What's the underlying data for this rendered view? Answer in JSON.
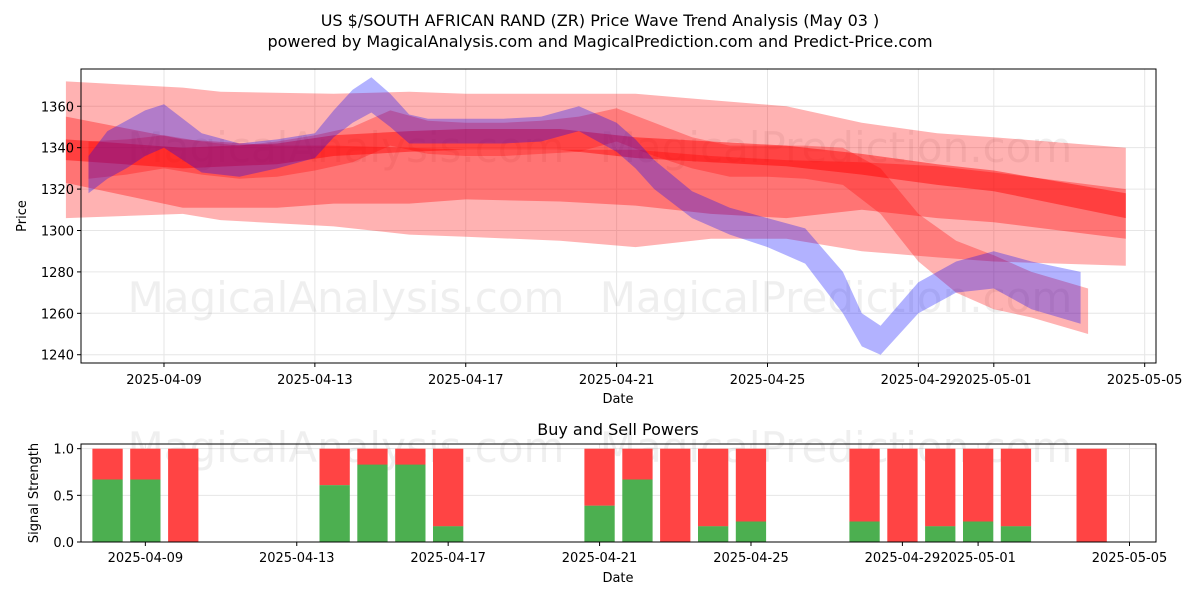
{
  "header": {
    "title_line1": "US $/SOUTH AFRICAN RAND (ZR) Price Wave Trend Analysis (May 03 )",
    "title_line2": "powered by MagicalAnalysis.com and MagicalPrediction.com and Predict-Price.com"
  },
  "watermarks": {
    "left": "MagicalAnalysis.com",
    "right": "MagicalPrediction.com"
  },
  "colors": {
    "red_band": "#ff0000",
    "blue_band": "#0000ff",
    "buy": "#4caf50",
    "sell": "#ff4444",
    "grid": "#e6e6e6"
  },
  "chart_data": [
    {
      "type": "area",
      "title": "",
      "xlabel": "Date",
      "ylabel": "Price",
      "ylim": [
        1236,
        1378
      ],
      "xlim_dates": [
        "2025-04-06.8",
        "2025-05-05.3"
      ],
      "x_ticks": [
        "2025-04-09",
        "2025-04-13",
        "2025-04-17",
        "2025-04-21",
        "2025-04-25",
        "2025-04-29",
        "2025-05-01",
        "2025-05-05"
      ],
      "y_ticks": [
        1240,
        1260,
        1280,
        1300,
        1320,
        1340,
        1360
      ],
      "grid": true,
      "series": [
        {
          "name": "red upper band",
          "color": "#ff0000",
          "opacity": 0.3,
          "x": [
            -0.6,
            2.5,
            3.5,
            6.5,
            8.5,
            10.0,
            12.5,
            14.5,
            16.5,
            18.5,
            20.5,
            22.5,
            24.0,
            27.5
          ],
          "upper": [
            1372,
            1369,
            1367,
            1366,
            1367,
            1366,
            1366,
            1366,
            1363,
            1360,
            1352,
            1347,
            1345,
            1340
          ],
          "lower": [
            1306,
            1308,
            1305,
            1302,
            1298,
            1297,
            1295,
            1292,
            1296,
            1296,
            1290,
            1287,
            1285,
            1283
          ]
        },
        {
          "name": "red trend band",
          "color": "#ff0000",
          "opacity": 0.35,
          "x": [
            -0.6,
            2.5,
            5.0,
            6.5,
            8.5,
            10.0,
            12.5,
            14.5,
            16.5,
            18.5,
            20.5,
            22.5,
            24.0,
            27.5
          ],
          "upper": [
            1355,
            1344,
            1341,
            1341,
            1340,
            1339,
            1339,
            1339,
            1336,
            1334,
            1333,
            1331,
            1328,
            1320
          ],
          "lower": [
            1323,
            1311,
            1311,
            1313,
            1313,
            1315,
            1314,
            1312,
            1308,
            1306,
            1310,
            1306,
            1304,
            1296
          ]
        },
        {
          "name": "red center line",
          "color": "#ff0000",
          "opacity": 0.45,
          "x": [
            -0.6,
            2.5,
            5.0,
            6.5,
            8.5,
            10.0,
            12.5,
            14.5,
            16.5,
            18.5,
            20.5,
            22.5,
            24.0,
            27.5
          ],
          "upper": [
            1344,
            1340,
            1342,
            1346,
            1348,
            1349,
            1349,
            1345,
            1343,
            1341,
            1337,
            1332,
            1329,
            1318
          ],
          "lower": [
            1334,
            1330,
            1332,
            1336,
            1338,
            1339,
            1339,
            1335,
            1333,
            1331,
            1327,
            1322,
            1319,
            1306
          ]
        },
        {
          "name": "red wave",
          "color": "#ff0000",
          "opacity": 0.3,
          "x": [
            0,
            1,
            2,
            3,
            4,
            5,
            6,
            7,
            8,
            9,
            10,
            11,
            12,
            13,
            14,
            15,
            16,
            17,
            18,
            19,
            20,
            21,
            22,
            23,
            24,
            25,
            26.5
          ],
          "upper": [
            1343,
            1344,
            1346,
            1343,
            1341,
            1343,
            1346,
            1350,
            1358,
            1353,
            1352,
            1352,
            1353,
            1355,
            1359,
            1352,
            1345,
            1341,
            1341,
            1341,
            1340,
            1330,
            1308,
            1295,
            1288,
            1280,
            1272
          ],
          "lower": [
            1325,
            1327,
            1330,
            1327,
            1325,
            1326,
            1329,
            1333,
            1341,
            1337,
            1336,
            1336,
            1337,
            1338,
            1343,
            1336,
            1330,
            1326,
            1326,
            1325,
            1322,
            1308,
            1285,
            1270,
            1262,
            1258,
            1250
          ]
        },
        {
          "name": "blue wave",
          "color": "#0000ff",
          "opacity": 0.3,
          "x": [
            0,
            0.5,
            1,
            1.5,
            2,
            3,
            4,
            5,
            6,
            6.5,
            7,
            7.5,
            8,
            8.5,
            9,
            10,
            11,
            12,
            13,
            14,
            14.5,
            15,
            16,
            17,
            18,
            19,
            20,
            20.5,
            21,
            22,
            23,
            24,
            25,
            26.3
          ],
          "upper": [
            1336,
            1348,
            1353,
            1358,
            1361,
            1347,
            1342,
            1344,
            1347,
            1358,
            1368,
            1374,
            1366,
            1356,
            1354,
            1354,
            1354,
            1355,
            1360,
            1352,
            1344,
            1334,
            1319,
            1311,
            1306,
            1301,
            1280,
            1260,
            1254,
            1275,
            1285,
            1290,
            1285,
            1280
          ],
          "lower": [
            1318,
            1325,
            1330,
            1336,
            1340,
            1328,
            1326,
            1330,
            1335,
            1345,
            1352,
            1357,
            1350,
            1342,
            1342,
            1342,
            1342,
            1343,
            1348,
            1338,
            1330,
            1320,
            1306,
            1298,
            1292,
            1284,
            1260,
            1244,
            1240,
            1260,
            1270,
            1272,
            1262,
            1255
          ]
        }
      ]
    },
    {
      "type": "bar",
      "title": "Buy and Sell Powers",
      "xlabel": "Date",
      "ylabel": "Signal Strength",
      "ylim": [
        0,
        1.05
      ],
      "x_ticks": [
        "2025-04-09",
        "2025-04-13",
        "2025-04-17",
        "2025-04-21",
        "2025-04-25",
        "2025-04-29",
        "2025-05-01",
        "2025-05-05"
      ],
      "y_ticks": [
        0.0,
        0.5,
        1.0
      ],
      "categories": [
        "2025-04-08",
        "2025-04-09",
        "2025-04-10",
        "2025-04-14",
        "2025-04-15",
        "2025-04-16",
        "2025-04-17",
        "2025-04-21",
        "2025-04-22",
        "2025-04-23",
        "2025-04-24",
        "2025-04-25",
        "2025-04-28",
        "2025-04-29",
        "2025-04-30",
        "2025-05-01",
        "2025-05-02",
        "2025-05-04"
      ],
      "series": [
        {
          "name": "Buy",
          "color": "#4caf50",
          "values": [
            0.67,
            0.67,
            0.0,
            0.61,
            0.83,
            0.83,
            0.17,
            0.39,
            0.67,
            0.0,
            0.17,
            0.22,
            0.22,
            0.0,
            0.17,
            0.22,
            0.17,
            0.0
          ]
        },
        {
          "name": "Sell",
          "color": "#ff4444",
          "values": [
            0.33,
            0.33,
            1.0,
            0.39,
            0.17,
            0.17,
            0.83,
            0.61,
            0.33,
            1.0,
            0.83,
            0.78,
            0.78,
            1.0,
            0.83,
            0.78,
            0.83,
            1.0
          ]
        }
      ]
    }
  ]
}
